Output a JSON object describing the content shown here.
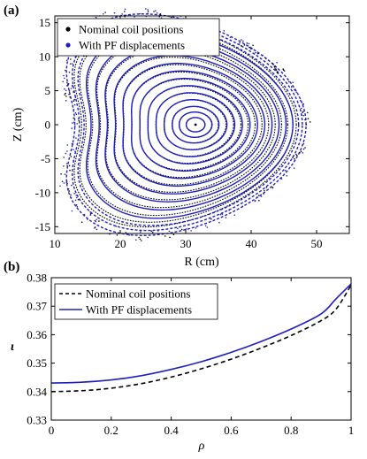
{
  "chart_data": [
    {
      "panel_label": "(a)",
      "type": "scatter",
      "xlabel": "R (cm)",
      "ylabel": "Z (cm)",
      "xlim": [
        10,
        55
      ],
      "ylim": [
        -16,
        16
      ],
      "xticks": [
        10,
        20,
        30,
        40,
        50
      ],
      "yticks": [
        -15,
        -10,
        -5,
        0,
        5,
        10,
        15
      ],
      "legend_position": "top-left",
      "grid": false,
      "magnetic_axis": {
        "R": 31.5,
        "Z": 0
      },
      "series": [
        {
          "name": "Nominal coil positions",
          "color": "#000000",
          "marker": "dot",
          "surfaces_rho": [
            0.08,
            0.14,
            0.2,
            0.27,
            0.34,
            0.41,
            0.48,
            0.55,
            0.62,
            0.69,
            0.76,
            0.83,
            0.9,
            0.96,
            1.0
          ]
        },
        {
          "name": "With PF displacements",
          "color": "#1f1fbf",
          "marker": "dot",
          "surfaces_rho": [
            0.08,
            0.14,
            0.2,
            0.27,
            0.34,
            0.41,
            0.48,
            0.55,
            0.62,
            0.69,
            0.76,
            0.83,
            0.9,
            0.96,
            1.0,
            1.04
          ]
        }
      ]
    },
    {
      "panel_label": "(b)",
      "type": "line",
      "xlabel": "ρ",
      "ylabel": "ɩ",
      "xlim": [
        0,
        1
      ],
      "ylim": [
        0.33,
        0.38
      ],
      "xticks": [
        0,
        0.2,
        0.4,
        0.6,
        0.8,
        1
      ],
      "yticks": [
        0.33,
        0.34,
        0.35,
        0.36,
        0.37,
        0.38
      ],
      "legend_position": "top-left",
      "grid": false,
      "x": [
        0,
        0.1,
        0.2,
        0.3,
        0.4,
        0.5,
        0.6,
        0.7,
        0.8,
        0.9,
        0.95,
        1.0
      ],
      "series": [
        {
          "name": "Nominal coil positions",
          "color": "#000000",
          "style": "dashed",
          "values": [
            0.34,
            0.3403,
            0.3412,
            0.3428,
            0.3451,
            0.348,
            0.3514,
            0.3553,
            0.3597,
            0.3649,
            0.369,
            0.3774
          ]
        },
        {
          "name": "With PF displacements",
          "color": "#1f1fbf",
          "style": "solid",
          "values": [
            0.343,
            0.3433,
            0.3441,
            0.3456,
            0.3478,
            0.3505,
            0.3538,
            0.3576,
            0.362,
            0.3673,
            0.3726,
            0.3778
          ]
        }
      ]
    }
  ]
}
